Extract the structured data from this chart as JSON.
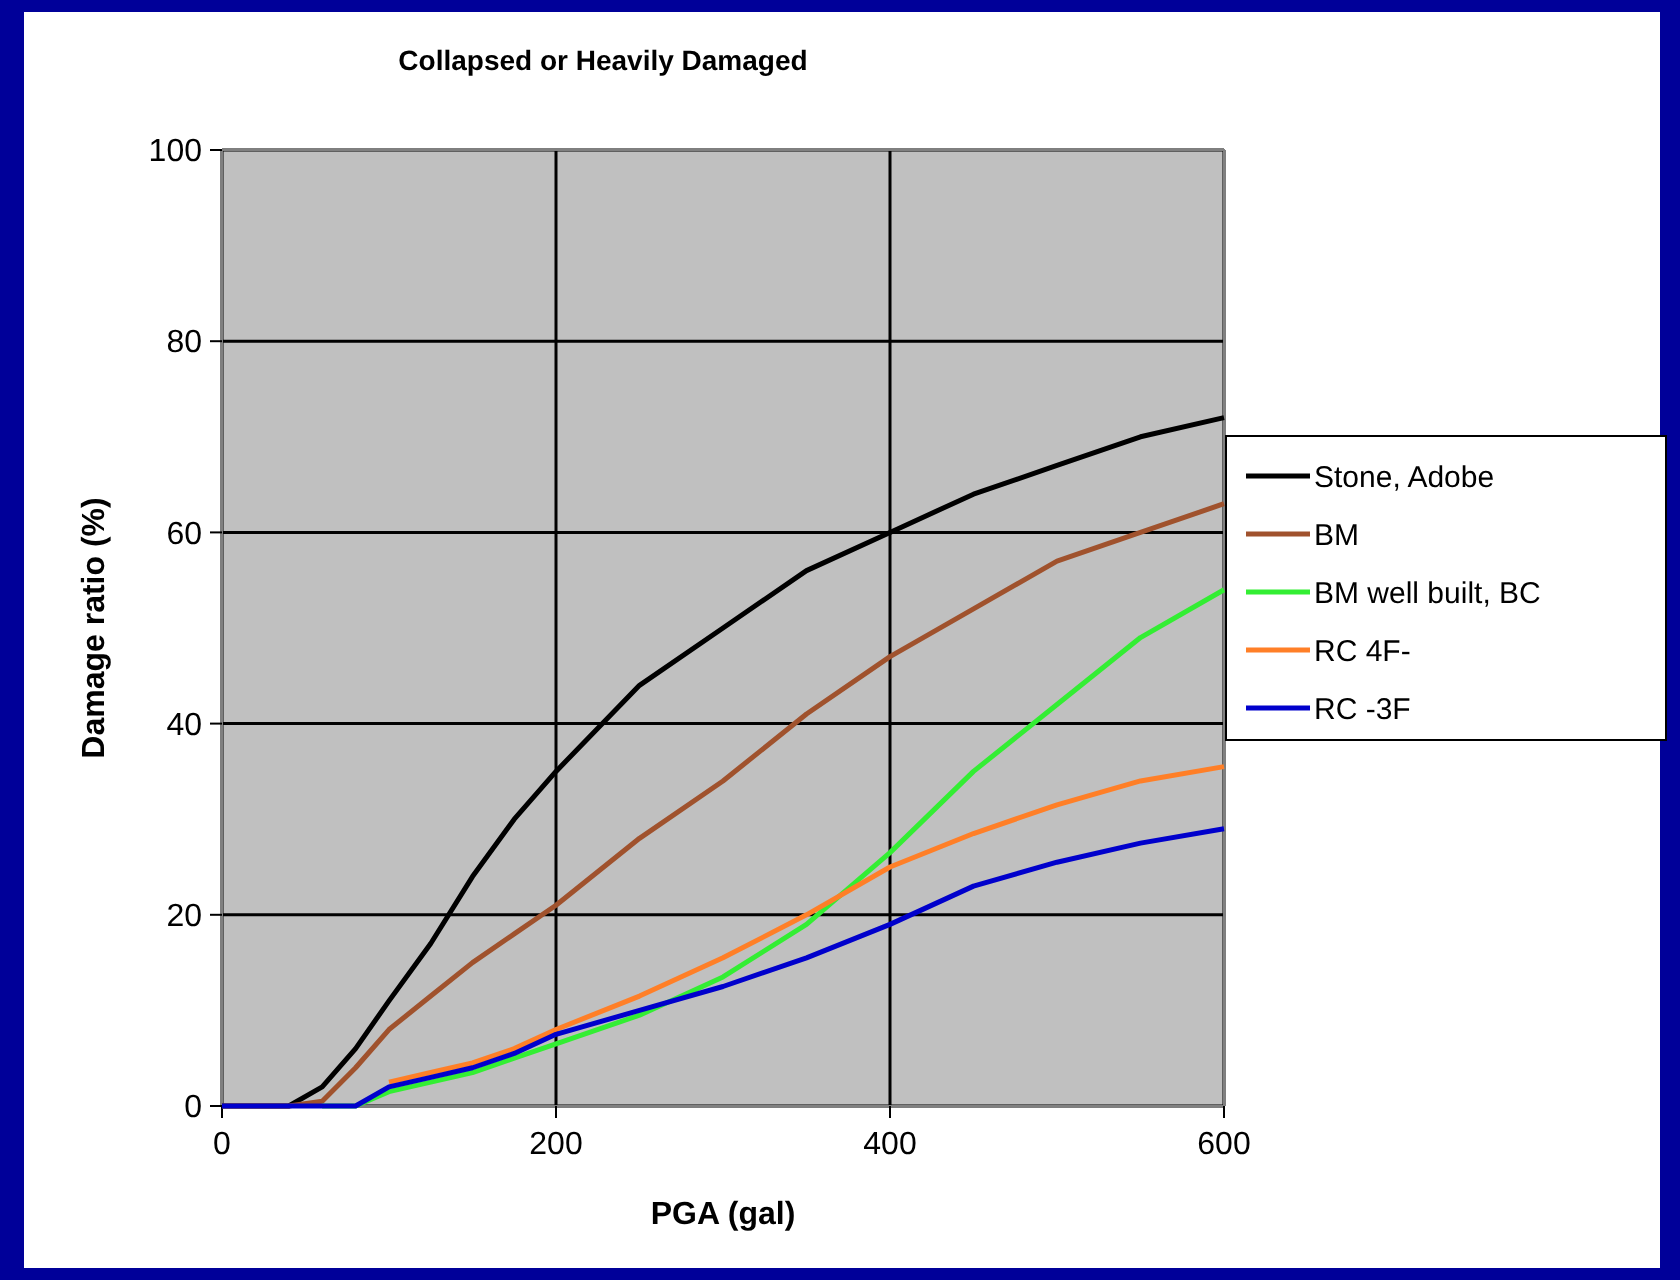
{
  "chart_data": {
    "type": "line",
    "title": "Collapsed or Heavily Damaged",
    "xlabel": "PGA (gal)",
    "ylabel": "Damage ratio (%)",
    "x": [
      0,
      40,
      60,
      80,
      100,
      125,
      150,
      175,
      200,
      250,
      300,
      350,
      400,
      450,
      500,
      550,
      600
    ],
    "xlim": [
      0,
      600
    ],
    "xticks": [
      0,
      200,
      400,
      600
    ],
    "ylim": [
      0,
      100
    ],
    "yticks": [
      0,
      20,
      40,
      60,
      80,
      100
    ],
    "grid": true,
    "legend": "right",
    "marker": "none",
    "line_style": "solid",
    "series": [
      {
        "name": "Stone, Adobe",
        "color": "#000000",
        "values": [
          0,
          0,
          2,
          6,
          11,
          17,
          24,
          30,
          35,
          44,
          50,
          56,
          60,
          64,
          67,
          70,
          72
        ]
      },
      {
        "name": "BM",
        "color": "#a0522d",
        "values": [
          0,
          0,
          0.5,
          4,
          8,
          11.5,
          15,
          18,
          21,
          28,
          34,
          41,
          47,
          52,
          57,
          60,
          63
        ]
      },
      {
        "name": "BM well built, BC",
        "color": "#33ee33",
        "values": [
          null,
          null,
          0,
          0,
          1.5,
          2.5,
          3.5,
          5,
          6.5,
          9.5,
          13.5,
          19,
          26.5,
          35,
          42,
          49,
          54
        ]
      },
      {
        "name": "RC 4F-",
        "color": "#ff7f27",
        "values": [
          null,
          null,
          null,
          null,
          2.5,
          3.5,
          4.5,
          6,
          8,
          11.5,
          15.5,
          20,
          25,
          28.5,
          31.5,
          34,
          35.5
        ]
      },
      {
        "name": "RC -3F",
        "color": "#0000cc",
        "values": [
          0,
          0,
          0,
          0,
          2,
          3,
          4,
          5.5,
          7.5,
          10,
          12.5,
          15.5,
          19,
          23,
          25.5,
          27.5,
          29
        ]
      }
    ]
  }
}
